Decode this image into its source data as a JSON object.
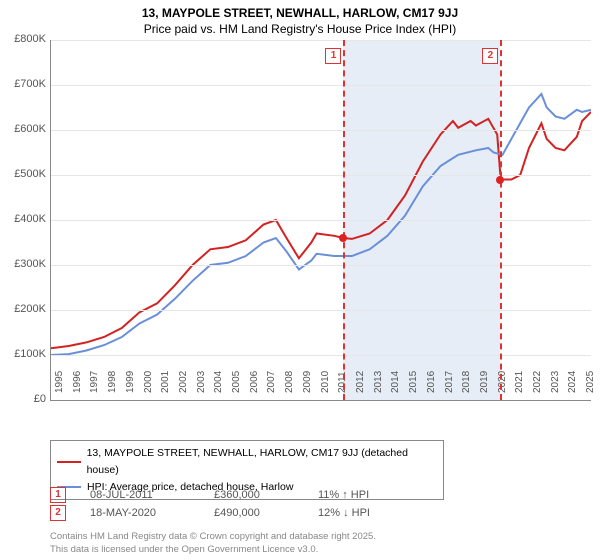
{
  "title_line1": "13, MAYPOLE STREET, NEWHALL, HARLOW, CM17 9JJ",
  "title_line2": "Price paid vs. HM Land Registry's House Price Index (HPI)",
  "chart": {
    "type": "line",
    "ylim": [
      0,
      800000
    ],
    "ytick_step": 100000,
    "yticks": [
      "£0",
      "£100K",
      "£200K",
      "£300K",
      "£400K",
      "£500K",
      "£600K",
      "£700K",
      "£800K"
    ],
    "xyears": [
      1995,
      1996,
      1997,
      1998,
      1999,
      2000,
      2001,
      2002,
      2003,
      2004,
      2005,
      2006,
      2007,
      2008,
      2009,
      2010,
      2011,
      2012,
      2013,
      2014,
      2015,
      2016,
      2017,
      2018,
      2019,
      2020,
      2021,
      2022,
      2023,
      2024,
      2025
    ],
    "xlim": [
      1995,
      2025.5
    ],
    "background_color": "#ffffff",
    "grid_color": "#e6e6e6",
    "band_color": "#dce6f2",
    "series": [
      {
        "name": "13, MAYPOLE STREET, NEWHALL, HARLOW, CM17 9JJ (detached house)",
        "color": "#d22222",
        "width": 2,
        "points": [
          [
            1995,
            115000
          ],
          [
            1996,
            120000
          ],
          [
            1997,
            128000
          ],
          [
            1998,
            140000
          ],
          [
            1999,
            160000
          ],
          [
            2000,
            195000
          ],
          [
            2001,
            215000
          ],
          [
            2002,
            255000
          ],
          [
            2003,
            300000
          ],
          [
            2004,
            335000
          ],
          [
            2005,
            340000
          ],
          [
            2006,
            355000
          ],
          [
            2007,
            390000
          ],
          [
            2007.7,
            400000
          ],
          [
            2008.3,
            360000
          ],
          [
            2009,
            315000
          ],
          [
            2009.7,
            350000
          ],
          [
            2010,
            370000
          ],
          [
            2011,
            365000
          ],
          [
            2011.5,
            360000
          ],
          [
            2012,
            358000
          ],
          [
            2013,
            370000
          ],
          [
            2014,
            400000
          ],
          [
            2015,
            455000
          ],
          [
            2016,
            530000
          ],
          [
            2017,
            590000
          ],
          [
            2017.7,
            620000
          ],
          [
            2018,
            605000
          ],
          [
            2018.7,
            620000
          ],
          [
            2019,
            610000
          ],
          [
            2019.7,
            625000
          ],
          [
            2020.2,
            590000
          ],
          [
            2020.4,
            490000
          ],
          [
            2021,
            490000
          ],
          [
            2021.5,
            500000
          ],
          [
            2022,
            560000
          ],
          [
            2022.7,
            615000
          ],
          [
            2023,
            580000
          ],
          [
            2023.5,
            560000
          ],
          [
            2024,
            555000
          ],
          [
            2024.7,
            585000
          ],
          [
            2025,
            620000
          ],
          [
            2025.5,
            640000
          ]
        ]
      },
      {
        "name": "HPI: Average price, detached house, Harlow",
        "color": "#6a8fd8",
        "width": 2,
        "points": [
          [
            1995,
            100000
          ],
          [
            1996,
            102000
          ],
          [
            1997,
            110000
          ],
          [
            1998,
            122000
          ],
          [
            1999,
            140000
          ],
          [
            2000,
            170000
          ],
          [
            2001,
            190000
          ],
          [
            2002,
            225000
          ],
          [
            2003,
            265000
          ],
          [
            2004,
            300000
          ],
          [
            2005,
            305000
          ],
          [
            2006,
            320000
          ],
          [
            2007,
            350000
          ],
          [
            2007.7,
            360000
          ],
          [
            2008.3,
            330000
          ],
          [
            2009,
            290000
          ],
          [
            2009.7,
            310000
          ],
          [
            2010,
            325000
          ],
          [
            2011,
            320000
          ],
          [
            2012,
            320000
          ],
          [
            2013,
            335000
          ],
          [
            2014,
            365000
          ],
          [
            2015,
            410000
          ],
          [
            2016,
            475000
          ],
          [
            2017,
            520000
          ],
          [
            2018,
            545000
          ],
          [
            2019,
            555000
          ],
          [
            2019.7,
            560000
          ],
          [
            2020,
            550000
          ],
          [
            2020.5,
            545000
          ],
          [
            2021,
            580000
          ],
          [
            2022,
            650000
          ],
          [
            2022.7,
            680000
          ],
          [
            2023,
            650000
          ],
          [
            2023.5,
            630000
          ],
          [
            2024,
            625000
          ],
          [
            2024.7,
            645000
          ],
          [
            2025,
            640000
          ],
          [
            2025.5,
            645000
          ]
        ]
      }
    ],
    "bands": [
      {
        "from": 2011.52,
        "to": 2020.38
      }
    ],
    "sale_markers": [
      {
        "idx": "1",
        "x": 2011.52,
        "y": 360000
      },
      {
        "idx": "2",
        "x": 2020.38,
        "y": 490000
      }
    ]
  },
  "legend": {
    "rows": [
      {
        "color": "#d22222",
        "label": "13, MAYPOLE STREET, NEWHALL, HARLOW, CM17 9JJ (detached house)"
      },
      {
        "color": "#6a8fd8",
        "label": "HPI: Average price, detached house, Harlow"
      }
    ]
  },
  "sales": [
    {
      "idx": "1",
      "date": "08-JUL-2011",
      "price": "£360,000",
      "delta": "11% ↑ HPI"
    },
    {
      "idx": "2",
      "date": "18-MAY-2020",
      "price": "£490,000",
      "delta": "12% ↓ HPI"
    }
  ],
  "footer_line1": "Contains HM Land Registry data © Crown copyright and database right 2025.",
  "footer_line2": "This data is licensed under the Open Government Licence v3.0."
}
